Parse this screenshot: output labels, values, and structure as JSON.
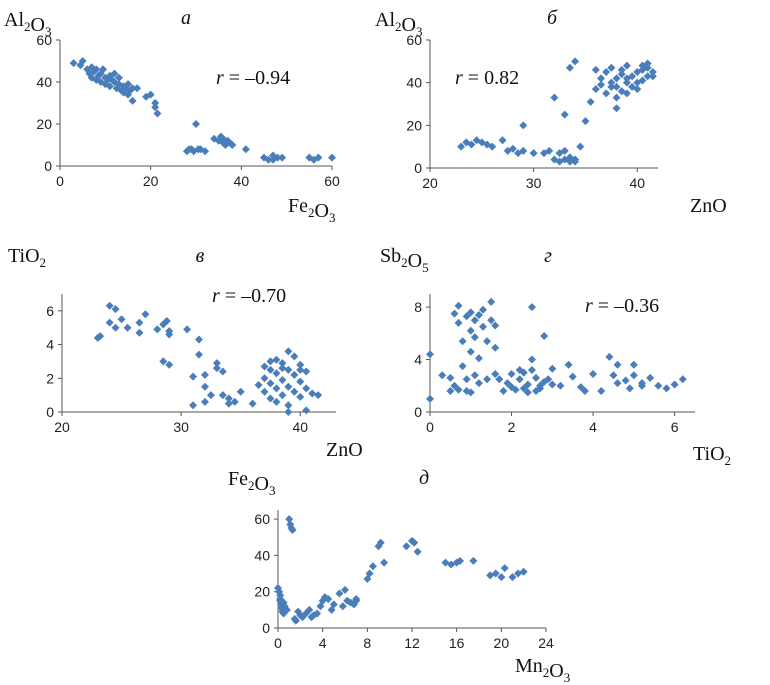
{
  "chart_data": [
    {
      "id": "a",
      "type": "scatter",
      "title": "а",
      "ylabel": "Al2O3",
      "xlabel": "Fe2O3",
      "annotation": "r = –0.94",
      "xlim": [
        0,
        60
      ],
      "ylim": [
        0,
        60
      ],
      "xticks": [
        0,
        20,
        40,
        60
      ],
      "yticks": [
        0,
        20,
        40,
        60
      ],
      "color": "#4a7ebb",
      "points": [
        [
          3,
          49
        ],
        [
          4.5,
          48
        ],
        [
          5,
          50
        ],
        [
          6,
          46
        ],
        [
          6.5,
          44
        ],
        [
          7,
          47
        ],
        [
          7,
          42
        ],
        [
          7.5,
          45
        ],
        [
          8,
          41
        ],
        [
          8,
          46
        ],
        [
          8.5,
          43
        ],
        [
          9,
          40
        ],
        [
          9,
          44
        ],
        [
          9.5,
          46
        ],
        [
          10,
          42
        ],
        [
          10,
          39
        ],
        [
          10.5,
          41
        ],
        [
          11,
          43
        ],
        [
          11,
          38
        ],
        [
          11.5,
          41
        ],
        [
          12,
          44
        ],
        [
          12,
          40
        ],
        [
          12.5,
          37
        ],
        [
          13,
          42
        ],
        [
          13,
          39
        ],
        [
          13.5,
          36
        ],
        [
          14,
          38
        ],
        [
          14,
          35
        ],
        [
          14.5,
          37
        ],
        [
          15,
          34
        ],
        [
          15,
          39
        ],
        [
          15.5,
          36
        ],
        [
          16,
          31
        ],
        [
          16,
          37
        ],
        [
          17,
          37
        ],
        [
          19,
          33
        ],
        [
          20,
          34
        ],
        [
          21,
          28
        ],
        [
          21,
          30
        ],
        [
          21.5,
          25
        ],
        [
          28,
          7
        ],
        [
          28.5,
          8
        ],
        [
          29,
          8
        ],
        [
          29.5,
          7
        ],
        [
          30,
          20
        ],
        [
          30.5,
          8
        ],
        [
          31,
          8
        ],
        [
          32,
          7
        ],
        [
          34,
          13
        ],
        [
          35,
          12
        ],
        [
          35.5,
          14
        ],
        [
          36,
          11
        ],
        [
          36,
          13
        ],
        [
          36.5,
          10
        ],
        [
          37,
          12
        ],
        [
          37.5,
          11
        ],
        [
          38,
          10
        ],
        [
          41,
          8
        ],
        [
          45,
          4
        ],
        [
          46,
          3
        ],
        [
          47,
          5
        ],
        [
          47,
          3
        ],
        [
          48,
          4
        ],
        [
          49,
          4
        ],
        [
          55,
          4
        ],
        [
          56,
          3
        ],
        [
          57,
          4
        ],
        [
          60,
          4
        ]
      ]
    },
    {
      "id": "b",
      "type": "scatter",
      "title": "б",
      "ylabel": "Al2O3",
      "xlabel": "ZnO",
      "annotation": "r = 0.82",
      "xlim": [
        20,
        42
      ],
      "ylim": [
        0,
        60
      ],
      "xticks": [
        20,
        30,
        40
      ],
      "yticks": [
        0,
        20,
        40,
        60
      ],
      "color": "#4a7ebb",
      "points": [
        [
          23,
          10
        ],
        [
          23.5,
          12
        ],
        [
          24,
          11
        ],
        [
          24.5,
          13
        ],
        [
          25,
          12
        ],
        [
          25.5,
          11
        ],
        [
          26,
          10
        ],
        [
          27,
          13
        ],
        [
          27.5,
          8
        ],
        [
          28,
          9
        ],
        [
          28.5,
          7
        ],
        [
          29,
          20
        ],
        [
          29,
          8
        ],
        [
          30,
          7
        ],
        [
          31,
          7
        ],
        [
          31.5,
          8
        ],
        [
          32,
          33
        ],
        [
          32,
          4
        ],
        [
          32.5,
          7
        ],
        [
          32.5,
          3
        ],
        [
          33,
          8
        ],
        [
          33,
          4
        ],
        [
          33.5,
          5
        ],
        [
          33,
          25
        ],
        [
          33.5,
          3
        ],
        [
          34,
          4
        ],
        [
          34,
          3
        ],
        [
          33.5,
          47
        ],
        [
          34,
          50
        ],
        [
          34.5,
          10
        ],
        [
          35,
          22
        ],
        [
          35.5,
          31
        ],
        [
          36,
          37
        ],
        [
          36,
          46
        ],
        [
          36.5,
          42
        ],
        [
          37,
          35
        ],
        [
          37,
          45
        ],
        [
          37.5,
          40
        ],
        [
          37.5,
          47
        ],
        [
          38,
          33
        ],
        [
          38,
          38
        ],
        [
          38,
          42
        ],
        [
          38,
          28
        ],
        [
          38.5,
          44
        ],
        [
          38.5,
          36
        ],
        [
          39,
          40
        ],
        [
          39,
          48
        ],
        [
          39,
          35
        ],
        [
          39.5,
          43
        ],
        [
          39.5,
          38
        ],
        [
          40,
          45
        ],
        [
          40,
          37
        ],
        [
          40.5,
          41
        ],
        [
          40.5,
          46
        ],
        [
          41,
          43
        ],
        [
          41,
          47
        ],
        [
          41.5,
          45
        ],
        [
          41.5,
          43
        ],
        [
          40,
          40
        ],
        [
          39,
          42
        ],
        [
          38.5,
          46
        ],
        [
          37.5,
          38
        ],
        [
          36.5,
          39
        ],
        [
          40.5,
          48
        ],
        [
          41,
          49
        ]
      ]
    },
    {
      "id": "v",
      "type": "scatter",
      "title": "в",
      "ylabel": "TiO2",
      "xlabel": "ZnO",
      "annotation": "r = –0.70",
      "xlim": [
        20,
        43
      ],
      "ylim": [
        0,
        7
      ],
      "xticks": [
        20,
        30,
        40
      ],
      "yticks": [
        0,
        2,
        4,
        6
      ],
      "color": "#4a7ebb",
      "points": [
        [
          23,
          4.4
        ],
        [
          23.2,
          4.5
        ],
        [
          24,
          6.3
        ],
        [
          24.5,
          6.1
        ],
        [
          24,
          5.3
        ],
        [
          24.5,
          5.0
        ],
        [
          25,
          5.5
        ],
        [
          25.5,
          5.0
        ],
        [
          26.5,
          5.3
        ],
        [
          26.5,
          4.7
        ],
        [
          27,
          5.8
        ],
        [
          28,
          4.9
        ],
        [
          28.5,
          5.2
        ],
        [
          28.8,
          5.4
        ],
        [
          29,
          4.8
        ],
        [
          29,
          4.6
        ],
        [
          28.5,
          3.0
        ],
        [
          29,
          2.8
        ],
        [
          30.5,
          4.9
        ],
        [
          31,
          2.1
        ],
        [
          31,
          0.4
        ],
        [
          31.5,
          4.3
        ],
        [
          31.5,
          3.4
        ],
        [
          32,
          2.2
        ],
        [
          32,
          1.5
        ],
        [
          32.5,
          1.0
        ],
        [
          32,
          0.6
        ],
        [
          33,
          2.9
        ],
        [
          33,
          2.6
        ],
        [
          33.5,
          2.4
        ],
        [
          33.5,
          1.0
        ],
        [
          34,
          0.8
        ],
        [
          34,
          0.5
        ],
        [
          34.5,
          0.6
        ],
        [
          35,
          1.2
        ],
        [
          36,
          0.5
        ],
        [
          36.5,
          1.6
        ],
        [
          37,
          2.0
        ],
        [
          37,
          1.2
        ],
        [
          37,
          2.7
        ],
        [
          37.5,
          2.5
        ],
        [
          37.5,
          1.7
        ],
        [
          37.5,
          0.8
        ],
        [
          38,
          3.1
        ],
        [
          38,
          2.3
        ],
        [
          38,
          1.4
        ],
        [
          38,
          0.6
        ],
        [
          38.5,
          2.9
        ],
        [
          38.5,
          1.9
        ],
        [
          38.5,
          1.0
        ],
        [
          39,
          3.6
        ],
        [
          39,
          2.5
        ],
        [
          39,
          1.5
        ],
        [
          39,
          0.4
        ],
        [
          39.5,
          3.3
        ],
        [
          39.5,
          2.2
        ],
        [
          39.5,
          1.2
        ],
        [
          40,
          2.8
        ],
        [
          40,
          1.8
        ],
        [
          40,
          0.9
        ],
        [
          40.5,
          2.4
        ],
        [
          40.5,
          1.4
        ],
        [
          40.5,
          0.1
        ],
        [
          41,
          1.1
        ],
        [
          41.5,
          1.0
        ],
        [
          39,
          0.0
        ],
        [
          38.5,
          2.6
        ],
        [
          37.5,
          3.0
        ],
        [
          40,
          2.5
        ]
      ]
    },
    {
      "id": "g",
      "type": "scatter",
      "title": "г",
      "ylabel": "Sb2O5",
      "xlabel": "TiO2",
      "annotation": "r = –0.36",
      "xlim": [
        0,
        6.5
      ],
      "ylim": [
        0,
        9
      ],
      "xticks": [
        0,
        2,
        4,
        6
      ],
      "yticks": [
        0,
        4,
        8
      ],
      "color": "#4a7ebb",
      "points": [
        [
          0,
          4.4
        ],
        [
          0,
          1.0
        ],
        [
          0.3,
          2.8
        ],
        [
          0.5,
          2.6
        ],
        [
          0.5,
          1.6
        ],
        [
          0.6,
          7.5
        ],
        [
          0.6,
          2.0
        ],
        [
          0.7,
          8.1
        ],
        [
          0.7,
          6.8
        ],
        [
          0.8,
          5.4
        ],
        [
          0.8,
          3.5
        ],
        [
          0.9,
          7.3
        ],
        [
          0.9,
          2.5
        ],
        [
          1.0,
          7.6
        ],
        [
          1.0,
          6.2
        ],
        [
          1.0,
          4.6
        ],
        [
          1.0,
          1.5
        ],
        [
          1.1,
          7.0
        ],
        [
          1.1,
          5.7
        ],
        [
          1.2,
          7.4
        ],
        [
          1.2,
          4.1
        ],
        [
          1.3,
          7.8
        ],
        [
          1.3,
          6.5
        ],
        [
          1.4,
          5.4
        ],
        [
          1.5,
          8.4
        ],
        [
          1.5,
          7.0
        ],
        [
          1.6,
          6.6
        ],
        [
          1.6,
          4.9
        ],
        [
          1.7,
          2.5
        ],
        [
          1.8,
          1.6
        ],
        [
          2.0,
          2.9
        ],
        [
          2.0,
          1.9
        ],
        [
          2.1,
          1.7
        ],
        [
          2.2,
          2.5
        ],
        [
          2.3,
          3.0
        ],
        [
          2.4,
          1.5
        ],
        [
          2.4,
          2.1
        ],
        [
          2.5,
          8.0
        ],
        [
          2.5,
          4.0
        ],
        [
          2.5,
          3.2
        ],
        [
          2.6,
          2.6
        ],
        [
          2.7,
          1.8
        ],
        [
          2.8,
          2.3
        ],
        [
          2.8,
          5.8
        ],
        [
          2.9,
          2.5
        ],
        [
          3.0,
          2.1
        ],
        [
          3.0,
          3.3
        ],
        [
          3.2,
          2.0
        ],
        [
          3.4,
          3.6
        ],
        [
          3.5,
          2.7
        ],
        [
          3.7,
          1.9
        ],
        [
          4.0,
          2.9
        ],
        [
          4.2,
          1.6
        ],
        [
          4.4,
          4.2
        ],
        [
          4.5,
          2.8
        ],
        [
          4.6,
          3.6
        ],
        [
          4.8,
          2.4
        ],
        [
          4.9,
          1.8
        ],
        [
          5.0,
          3.6
        ],
        [
          5.0,
          2.8
        ],
        [
          5.2,
          2.2
        ],
        [
          5.4,
          2.6
        ],
        [
          5.6,
          2.0
        ],
        [
          5.8,
          1.8
        ],
        [
          6.0,
          2.1
        ],
        [
          6.2,
          2.5
        ],
        [
          5.2,
          2.0
        ],
        [
          4.6,
          2.2
        ],
        [
          3.8,
          1.6
        ],
        [
          2.6,
          1.6
        ],
        [
          2.3,
          1.8
        ],
        [
          1.9,
          2.2
        ],
        [
          1.4,
          2.5
        ],
        [
          1.1,
          2.8
        ],
        [
          0.9,
          1.6
        ],
        [
          0.7,
          1.7
        ],
        [
          1.2,
          2.2
        ],
        [
          1.6,
          2.9
        ],
        [
          2.2,
          3.2
        ],
        [
          2.7,
          2.0
        ]
      ]
    },
    {
      "id": "d",
      "type": "scatter",
      "title": "д",
      "ylabel": "Fe2O3",
      "xlabel": "Mn2O3",
      "annotation": "",
      "xlim": [
        0,
        24
      ],
      "ylim": [
        0,
        65
      ],
      "xticks": [
        0,
        4,
        8,
        12,
        16,
        20,
        24
      ],
      "yticks": [
        0,
        20,
        40,
        60
      ],
      "color": "#4a7ebb",
      "points": [
        [
          0,
          22
        ],
        [
          0.1,
          20
        ],
        [
          0.2,
          18
        ],
        [
          0.2,
          15
        ],
        [
          0.3,
          13
        ],
        [
          0.3,
          11
        ],
        [
          0.4,
          9
        ],
        [
          0.2,
          16
        ],
        [
          0.5,
          14
        ],
        [
          0.5,
          8
        ],
        [
          0.6,
          12
        ],
        [
          0.8,
          10
        ],
        [
          1.0,
          60
        ],
        [
          1.1,
          57
        ],
        [
          1.2,
          55
        ],
        [
          1.3,
          54
        ],
        [
          1.5,
          5
        ],
        [
          1.6,
          4
        ],
        [
          1.8,
          9
        ],
        [
          2.0,
          7
        ],
        [
          2.2,
          6
        ],
        [
          2.5,
          8
        ],
        [
          2.8,
          10
        ],
        [
          3.0,
          6
        ],
        [
          3.2,
          7
        ],
        [
          3.5,
          8
        ],
        [
          3.8,
          12
        ],
        [
          4.0,
          15
        ],
        [
          4.2,
          17
        ],
        [
          4.5,
          16
        ],
        [
          4.8,
          10
        ],
        [
          5.0,
          13
        ],
        [
          5.5,
          19
        ],
        [
          5.8,
          12
        ],
        [
          6.0,
          21
        ],
        [
          6.2,
          15
        ],
        [
          6.5,
          14
        ],
        [
          6.8,
          13
        ],
        [
          7.0,
          16
        ],
        [
          7.0,
          15
        ],
        [
          8.0,
          27
        ],
        [
          8.2,
          30
        ],
        [
          8.5,
          34
        ],
        [
          9.0,
          45
        ],
        [
          9.2,
          47
        ],
        [
          9.5,
          36
        ],
        [
          11.5,
          45
        ],
        [
          12.0,
          48
        ],
        [
          12.2,
          47
        ],
        [
          12.5,
          42
        ],
        [
          15.0,
          36
        ],
        [
          15.5,
          35
        ],
        [
          16.0,
          36
        ],
        [
          16.3,
          37
        ],
        [
          17.5,
          37
        ],
        [
          19.0,
          29
        ],
        [
          19.5,
          30
        ],
        [
          20.0,
          28
        ],
        [
          20.3,
          33
        ],
        [
          21.0,
          28
        ],
        [
          21.5,
          30
        ],
        [
          22.0,
          31
        ]
      ]
    }
  ]
}
